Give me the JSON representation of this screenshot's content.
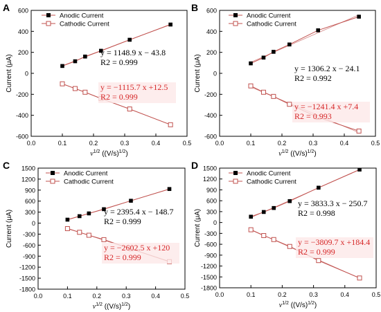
{
  "chart_data": [
    {
      "panel": "A",
      "type": "scatter",
      "xlabel": "v1/2 ((V/s)1/2)",
      "ylabel": "Current (μA)",
      "xlim": [
        0.0,
        0.5
      ],
      "ylim": [
        -600,
        600
      ],
      "x_ticks": [
        "0.0",
        "0.1",
        "0.2",
        "0.3",
        "0.4",
        "0.5"
      ],
      "y_ticks": [
        "-600",
        "-400",
        "-200",
        "0",
        "200",
        "400",
        "600"
      ],
      "legend_position": "top-left",
      "series": [
        {
          "name": "Anodic Current",
          "marker": "filled-square",
          "color": "#000000",
          "line_color": "#c0504d",
          "x": [
            0.1,
            0.141,
            0.173,
            0.224,
            0.316,
            0.447
          ],
          "y": [
            70,
            115,
            160,
            215,
            320,
            465
          ]
        },
        {
          "name": "Cathodic Current",
          "marker": "open-square",
          "color": "#c0504d",
          "line_color": "#c0504d",
          "x": [
            0.1,
            0.141,
            0.173,
            0.224,
            0.316,
            0.447
          ],
          "y": [
            -100,
            -145,
            -180,
            -240,
            -340,
            -490
          ]
        }
      ],
      "annotations": [
        {
          "equation": "y = 1148.9 x − 43.8",
          "r2": "R2 = 0.999",
          "color": "#000000"
        },
        {
          "equation": "y = −1115.7 x +12.5",
          "r2": "R2 = 0.999",
          "color": "#d62728"
        }
      ]
    },
    {
      "panel": "B",
      "type": "scatter",
      "xlabel": "v1/2 ((V/s)1/2)",
      "ylabel": "Current (μA)",
      "xlim": [
        0.0,
        0.5
      ],
      "ylim": [
        -600,
        600
      ],
      "x_ticks": [
        "0.0",
        "0.1",
        "0.2",
        "0.3",
        "0.4",
        "0.5"
      ],
      "y_ticks": [
        "-600",
        "-400",
        "-200",
        "0",
        "200",
        "400",
        "600"
      ],
      "legend_position": "top-left",
      "series": [
        {
          "name": "Anodic Current",
          "marker": "filled-square",
          "color": "#000000",
          "line_color": "#c0504d",
          "x": [
            0.1,
            0.141,
            0.173,
            0.224,
            0.316,
            0.447
          ],
          "y": [
            95,
            150,
            205,
            275,
            410,
            540
          ]
        },
        {
          "name": "Cathodic Current",
          "marker": "open-square",
          "color": "#c0504d",
          "line_color": "#c0504d",
          "x": [
            0.1,
            0.141,
            0.173,
            0.224,
            0.316,
            0.447
          ],
          "y": [
            -120,
            -180,
            -220,
            -295,
            -420,
            -550
          ]
        }
      ],
      "annotations": [
        {
          "equation": "y = 1306.2 x − 24.1",
          "r2": "R2 = 0.992",
          "color": "#000000"
        },
        {
          "equation": "y = −1241.4 x +7.4",
          "r2": "R2 = 0.993",
          "color": "#d62728"
        }
      ]
    },
    {
      "panel": "C",
      "type": "scatter",
      "xlabel": "v1/2 ((V/s)1/2)",
      "ylabel": "Current (μA)",
      "xlim": [
        0.0,
        0.5
      ],
      "ylim": [
        -1800,
        1500
      ],
      "x_ticks": [
        "0.0",
        "0.1",
        "0.2",
        "0.3",
        "0.4",
        "0.5"
      ],
      "y_ticks": [
        "-1800",
        "-1500",
        "-1200",
        "-900",
        "-600",
        "-300",
        "0",
        "300",
        "600",
        "900",
        "1200",
        "1500"
      ],
      "legend_position": "top-left",
      "series": [
        {
          "name": "Anodic Current",
          "marker": "filled-square",
          "color": "#000000",
          "line_color": "#c0504d",
          "x": [
            0.1,
            0.141,
            0.173,
            0.224,
            0.316,
            0.447
          ],
          "y": [
            95,
            190,
            265,
            380,
            610,
            930
          ]
        },
        {
          "name": "Cathodic Current",
          "marker": "open-square",
          "color": "#c0504d",
          "line_color": "#c0504d",
          "x": [
            0.1,
            0.141,
            0.173,
            0.224,
            0.316,
            0.447
          ],
          "y": [
            -150,
            -250,
            -330,
            -450,
            -700,
            -1050
          ]
        }
      ],
      "annotations": [
        {
          "equation": "y = 2395.4 x − 148.7",
          "r2": "R2 = 0.999",
          "color": "#000000"
        },
        {
          "equation": "y = −2602.5 x +120",
          "r2": "R2 = 0.999",
          "color": "#d62728"
        }
      ]
    },
    {
      "panel": "D",
      "type": "scatter",
      "xlabel": "v1/2 ((V/s)1/2)",
      "ylabel": "Current (μA)",
      "xlim": [
        0.0,
        0.5
      ],
      "ylim": [
        -1800,
        1500
      ],
      "x_ticks": [
        "0.0",
        "0.1",
        "0.2",
        "0.3",
        "0.4",
        "0.5"
      ],
      "y_ticks": [
        "-1800",
        "-1500",
        "-1200",
        "-900",
        "-600",
        "-300",
        "0",
        "300",
        "600",
        "900",
        "1200",
        "1500"
      ],
      "legend_position": "top-left",
      "series": [
        {
          "name": "Anodic Current",
          "marker": "filled-square",
          "color": "#000000",
          "line_color": "#c0504d",
          "x": [
            0.1,
            0.141,
            0.173,
            0.224,
            0.316,
            0.447
          ],
          "y": [
            160,
            290,
            400,
            590,
            960,
            1460
          ]
        },
        {
          "name": "Cathodic Current",
          "marker": "open-square",
          "color": "#c0504d",
          "line_color": "#c0504d",
          "x": [
            0.1,
            0.141,
            0.173,
            0.224,
            0.316,
            0.447
          ],
          "y": [
            -200,
            -360,
            -470,
            -660,
            -1050,
            -1530
          ]
        }
      ],
      "annotations": [
        {
          "equation": "y = 3833.3 x − 250.7",
          "r2": "R2 = 0.998",
          "color": "#000000"
        },
        {
          "equation": "y = −3809.7 x +184.4",
          "r2": "R2 = 0.999",
          "color": "#d62728"
        }
      ]
    }
  ]
}
